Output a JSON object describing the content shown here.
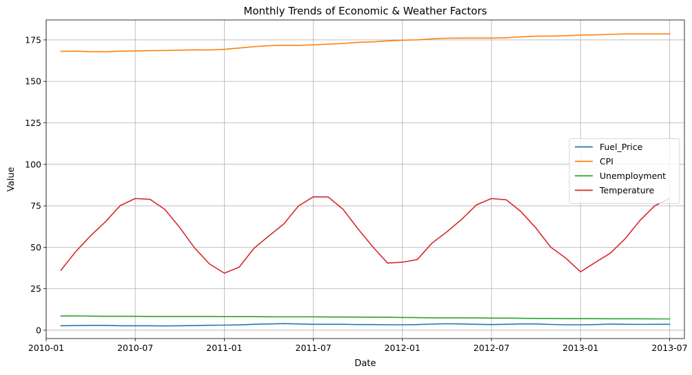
{
  "chart_data": {
    "type": "line",
    "title": "Monthly Trends of Economic & Weather Factors",
    "xlabel": "Date",
    "ylabel": "Value",
    "grid": true,
    "legend_position": "center-right",
    "x_ticks": [
      "2010-01",
      "2010-07",
      "2011-01",
      "2011-07",
      "2012-01",
      "2012-07",
      "2013-01",
      "2013-07"
    ],
    "y_ticks": [
      0,
      25,
      50,
      75,
      100,
      125,
      150,
      175
    ],
    "xlim": [
      "2010-01",
      "2013-08"
    ],
    "ylim": [
      -5,
      187
    ],
    "x": [
      "2010-02",
      "2010-03",
      "2010-04",
      "2010-05",
      "2010-06",
      "2010-07",
      "2010-08",
      "2010-09",
      "2010-10",
      "2010-11",
      "2010-12",
      "2011-01",
      "2011-02",
      "2011-03",
      "2011-04",
      "2011-05",
      "2011-06",
      "2011-07",
      "2011-08",
      "2011-09",
      "2011-10",
      "2011-11",
      "2011-12",
      "2012-01",
      "2012-02",
      "2012-03",
      "2012-04",
      "2012-05",
      "2012-06",
      "2012-07",
      "2012-08",
      "2012-09",
      "2012-10",
      "2012-11",
      "2012-12",
      "2013-01",
      "2013-02",
      "2013-03",
      "2013-04",
      "2013-05",
      "2013-06",
      "2013-07"
    ],
    "series": [
      {
        "name": "Fuel_Price",
        "color": "#1f77b4",
        "values": [
          2.7,
          2.8,
          2.9,
          2.9,
          2.7,
          2.7,
          2.7,
          2.6,
          2.7,
          2.8,
          3.0,
          3.1,
          3.2,
          3.6,
          3.8,
          4.0,
          3.8,
          3.6,
          3.6,
          3.6,
          3.4,
          3.4,
          3.3,
          3.3,
          3.4,
          3.7,
          3.9,
          3.8,
          3.6,
          3.4,
          3.6,
          3.8,
          3.8,
          3.5,
          3.3,
          3.3,
          3.4,
          3.7,
          3.6,
          3.5,
          3.6,
          3.6
        ]
      },
      {
        "name": "CPI",
        "color": "#ff7f0e",
        "values": [
          168.1,
          168.2,
          167.9,
          167.8,
          168.2,
          168.3,
          168.5,
          168.6,
          168.8,
          169.0,
          168.9,
          169.3,
          170.1,
          170.9,
          171.5,
          171.8,
          171.7,
          172.0,
          172.4,
          172.8,
          173.5,
          173.8,
          174.4,
          174.8,
          175.0,
          175.6,
          176.0,
          176.1,
          176.1,
          176.1,
          176.3,
          176.8,
          177.2,
          177.3,
          177.5,
          177.9,
          178.0,
          178.3,
          178.6,
          178.6,
          178.6,
          178.6
        ]
      },
      {
        "name": "Unemployment",
        "color": "#2ca02c",
        "values": [
          8.6,
          8.6,
          8.5,
          8.4,
          8.4,
          8.4,
          8.3,
          8.3,
          8.3,
          8.3,
          8.3,
          8.2,
          8.2,
          8.2,
          8.1,
          8.1,
          8.1,
          8.1,
          8.0,
          8.0,
          7.9,
          7.9,
          7.8,
          7.7,
          7.6,
          7.5,
          7.5,
          7.5,
          7.4,
          7.3,
          7.3,
          7.2,
          7.1,
          7.1,
          7.0,
          7.0,
          7.0,
          6.9,
          6.9,
          6.9,
          6.8,
          6.8
        ]
      },
      {
        "name": "Temperature",
        "color": "#d62728",
        "values": [
          36.2,
          47.5,
          57.0,
          65.4,
          75.2,
          79.4,
          78.9,
          72.8,
          61.9,
          49.6,
          40.0,
          34.4,
          38.0,
          49.4,
          56.8,
          64.0,
          74.9,
          80.4,
          80.3,
          72.9,
          61.2,
          50.3,
          40.5,
          41.0,
          42.6,
          52.5,
          59.3,
          66.9,
          75.6,
          79.4,
          78.6,
          71.4,
          61.5,
          50.0,
          43.5,
          35.2,
          40.9,
          46.4,
          55.1,
          66.1,
          75.0,
          79.5
        ]
      }
    ]
  }
}
